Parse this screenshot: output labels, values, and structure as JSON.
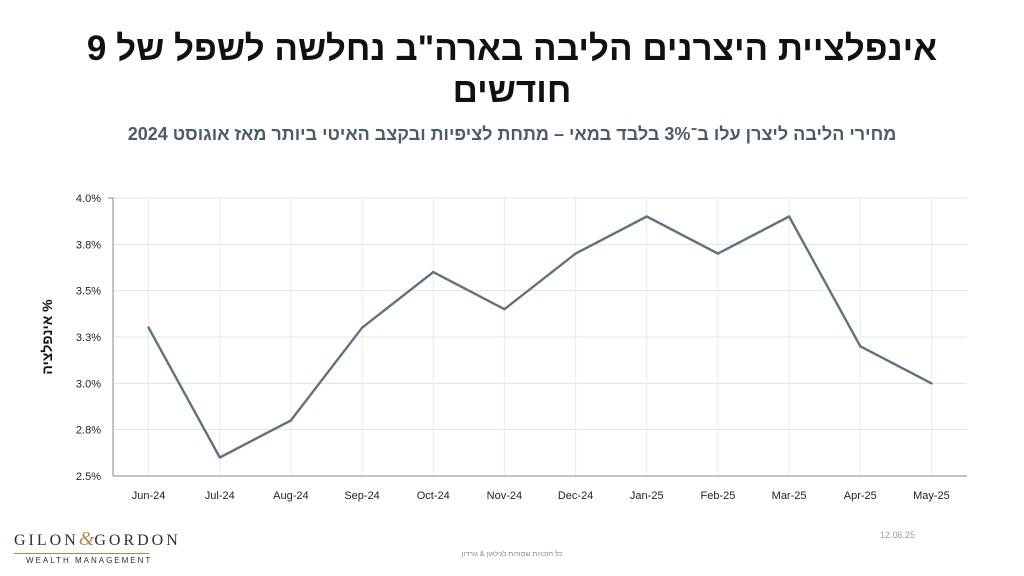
{
  "header": {
    "title": "אינפלציית היצרנים הליבה בארה\"ב נחלשה לשפל של 9 חודשים",
    "subtitle": "מחירי הליבה ליצרן עלו ב־3% בלבד במאי – מתחת לציפיות ובקצב האיטי ביותר מאז אוגוסט 2024"
  },
  "chart_data": {
    "type": "line",
    "categories": [
      "Jun-24",
      "Jul-24",
      "Aug-24",
      "Sep-24",
      "Oct-24",
      "Nov-24",
      "Dec-24",
      "Jan-25",
      "Feb-25",
      "Mar-25",
      "Apr-25",
      "May-25"
    ],
    "series": [
      {
        "values": [
          3.3,
          2.6,
          2.8,
          3.3,
          3.6,
          3.4,
          3.7,
          3.9,
          3.7,
          3.9,
          3.2,
          3.0
        ]
      }
    ],
    "ylabel": "% אינפלציה",
    "xlabel": "",
    "ylim": [
      2.5,
      4.0
    ],
    "yticks": [
      2.5,
      2.75,
      3.0,
      3.25,
      3.5,
      3.75,
      4.0
    ],
    "ytick_labels": [
      "2.5%",
      "2.8%",
      "3.0%",
      "3.3%",
      "3.5%",
      "3.8%",
      "4.0%"
    ],
    "line_color": "#5f7282",
    "grid": true,
    "legend": "none"
  },
  "footer": {
    "logo_left": "GILON",
    "logo_amp": "&",
    "logo_right": "GORDON",
    "logo_sub": "WEALTH MANAGEMENT",
    "date": "12.06.25",
    "copyright": "כל הזכויות שמורות לגילאון & גורדון"
  }
}
